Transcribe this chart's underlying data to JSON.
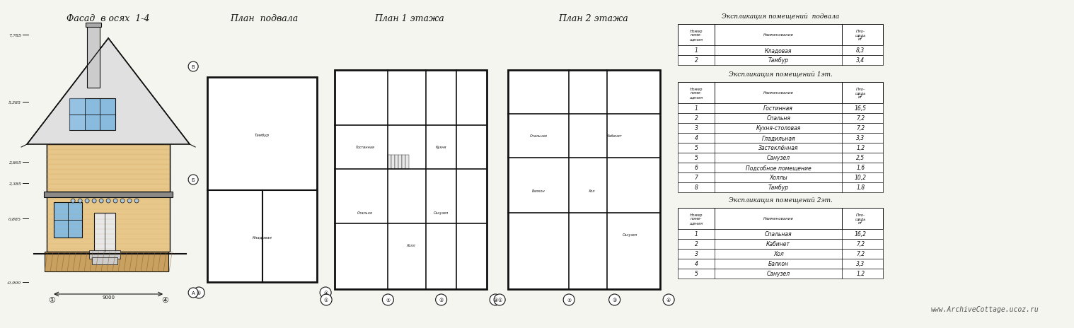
{
  "bg_color": "#f5f5f0",
  "title_facade": "Фасад  в осях  1-4",
  "title_basement": "План  подвала",
  "title_floor1": "План 1 этажа",
  "title_floor2": "План 2 этажа",
  "table_basement_title": "Экспликация помещений  подвала",
  "table_floor1_title": "Экспликация помещений 1эт.",
  "table_floor2_title": "Экспликация помещений 2эт.",
  "col_headers": [
    "Номер\nпоме-\nщения",
    "Наименование",
    "Пло-\nщадь\nм²"
  ],
  "basement_rooms": [
    [
      "1",
      "Кладовая",
      "8,3"
    ],
    [
      "2",
      "Тамбур",
      "3,4"
    ]
  ],
  "floor1_rooms": [
    [
      "1",
      "Гостинная",
      "16,5"
    ],
    [
      "2",
      "Спальня",
      "7,2"
    ],
    [
      "3",
      "Кухня-столовая",
      "7,2"
    ],
    [
      "4",
      "Гладильная",
      "3,3"
    ],
    [
      "5",
      "Застеклённая",
      "1,2"
    ],
    [
      "5",
      "Санузел",
      "2,5"
    ],
    [
      "6",
      "Подсобное помещение",
      "1,6"
    ],
    [
      "7",
      "Холлы",
      "10,2"
    ],
    [
      "8",
      "Тамбур",
      "1,8"
    ]
  ],
  "floor2_rooms": [
    [
      "1",
      "Спальная",
      "16,2"
    ],
    [
      "2",
      "Кабинет",
      "7,2"
    ],
    [
      "3",
      "Хол",
      "7,2"
    ],
    [
      "4",
      "Балкон",
      "3,3"
    ],
    [
      "5",
      "Санузел",
      "1,2"
    ]
  ],
  "website": "www.ArchiveCottage.ucoz.ru",
  "line_color": "#111111",
  "wall_color": "#e8c88a",
  "roof_color": "#d4d4d4",
  "ground_color": "#c8a060",
  "window_color": "#88bbdd",
  "marks": [
    "7,785",
    "5,385",
    "2,865",
    "2,385",
    "0,885",
    "-0,900"
  ],
  "axes_labels": [
    "1",
    "4"
  ]
}
